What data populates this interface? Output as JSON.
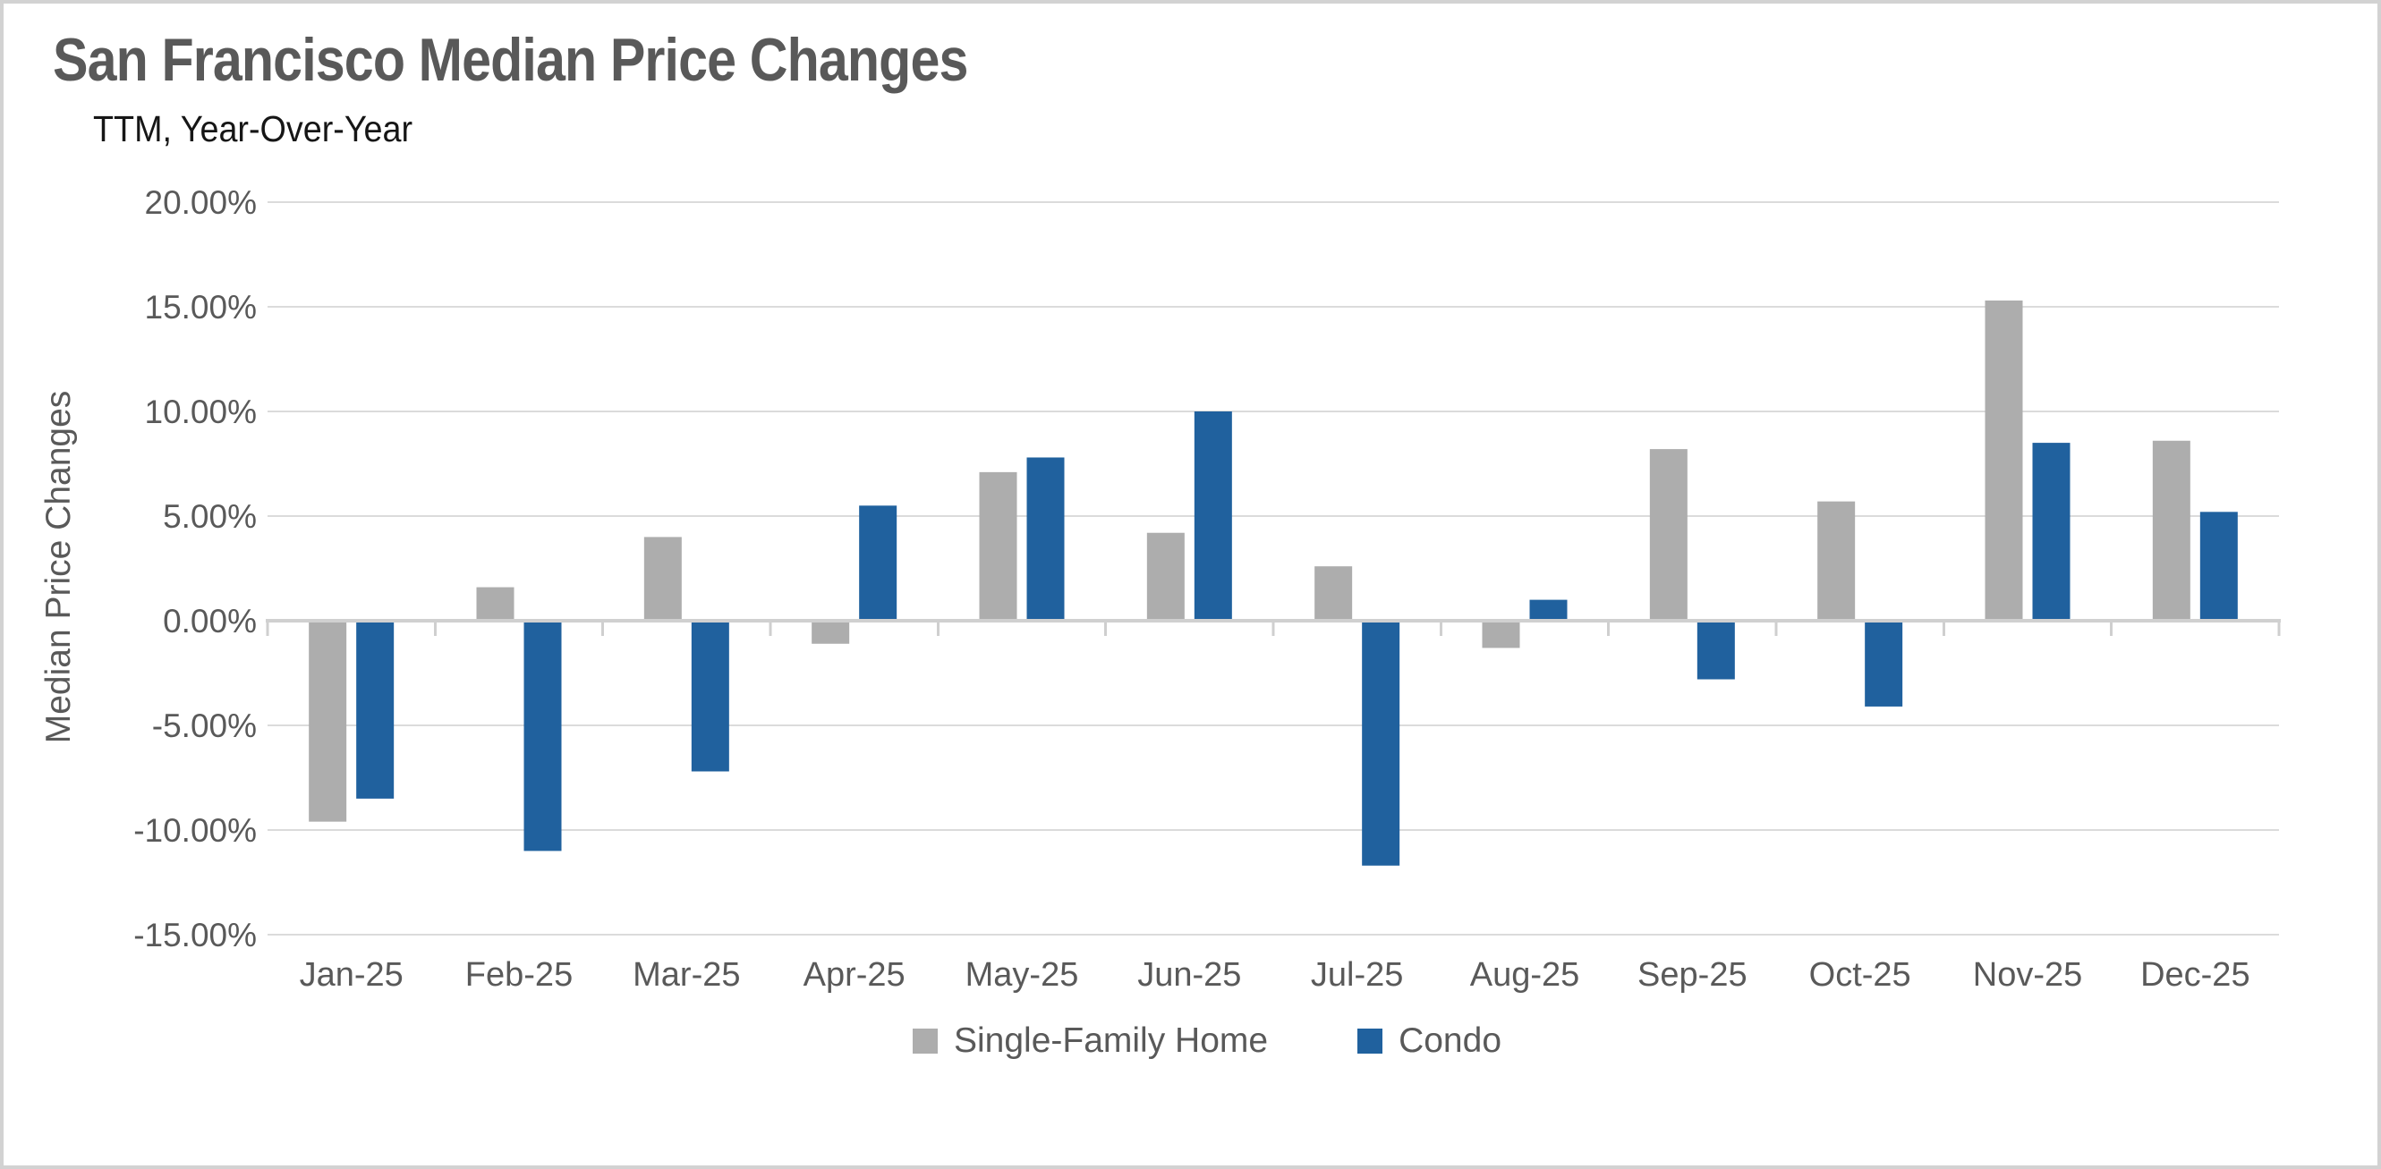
{
  "page": {
    "title": "San Francisco Median Price Changes",
    "subtitle": "TTM, Year-Over-Year"
  },
  "chart_data": {
    "type": "bar",
    "title": "San Francisco Median Price Changes",
    "subtitle": "TTM, Year-Over-Year",
    "xlabel": "",
    "ylabel": "Median Price Changes",
    "value_unit": "percent",
    "categories": [
      "Jan-25",
      "Feb-25",
      "Mar-25",
      "Apr-25",
      "May-25",
      "Jun-25",
      "Jul-25",
      "Aug-25",
      "Sep-25",
      "Oct-25",
      "Nov-25",
      "Dec-25"
    ],
    "series": [
      {
        "name": "Single-Family Home",
        "color": "#ADADAD",
        "values": [
          -9.6,
          1.6,
          4.0,
          -1.1,
          7.1,
          4.2,
          2.6,
          -1.3,
          8.2,
          5.7,
          15.3,
          8.6
        ]
      },
      {
        "name": "Condo",
        "color": "#20619E",
        "values": [
          -8.5,
          -11.0,
          -7.2,
          5.5,
          7.8,
          10.0,
          -11.7,
          1.0,
          -2.8,
          -4.1,
          8.5,
          5.2
        ]
      }
    ],
    "ylim": [
      -15,
      20
    ],
    "y_ticks": [
      20,
      15,
      10,
      5,
      0,
      -5,
      -10,
      -15
    ],
    "y_tick_labels": [
      "20.00%",
      "15.00%",
      "10.00%",
      "5.00%",
      "0.00%",
      "-5.00%",
      "-10.00%",
      "-15.00%"
    ],
    "grid": true,
    "legend_position": "bottom"
  }
}
